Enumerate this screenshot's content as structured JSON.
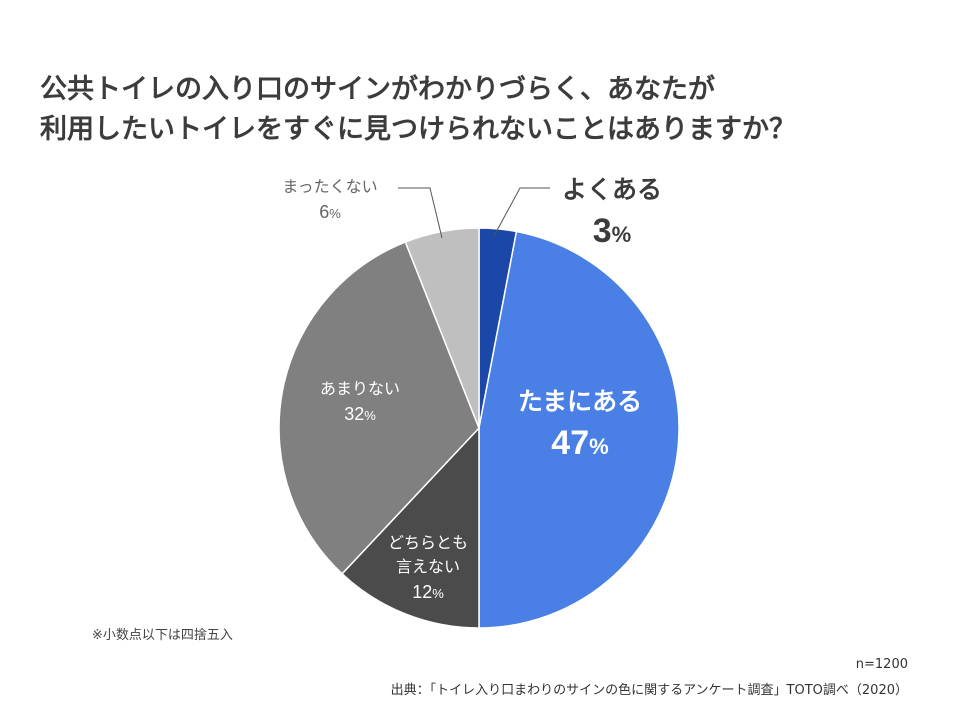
{
  "title_lines": [
    "公共トイレの入り口のサインがわかりづらく、あなたが",
    "利用したいトイレをすぐに見つけられないことはありますか？"
  ],
  "note": "※小数点以下は四捨五入",
  "sample_size": "n=1200",
  "source": "出典：「トイレ入り口まわりのサインの色に関するアンケート調査」TOTO調べ（2020）",
  "chart_data": {
    "type": "pie",
    "start": "12 o'clock",
    "direction": "clockwise",
    "unit": "%",
    "slices": [
      {
        "label": "よくある",
        "value": 3,
        "color": "#1a47a8",
        "label_color": "#3c3c3c",
        "emphasis": true
      },
      {
        "label": "たまにある",
        "value": 47,
        "color": "#4a80e6",
        "label_color": "#ffffff",
        "emphasis": true
      },
      {
        "label": "どちらとも言えない",
        "label_lines": [
          "どちらとも",
          "言えない"
        ],
        "value": 12,
        "color": "#4b4b4b",
        "label_color": "#ffffff",
        "emphasis": false
      },
      {
        "label": "あまりない",
        "value": 32,
        "color": "#808080",
        "label_color": "#ffffff",
        "emphasis": false
      },
      {
        "label": "まったくない",
        "value": 6,
        "color": "#bfbfbf",
        "label_color": "#666666",
        "emphasis": false
      }
    ]
  }
}
